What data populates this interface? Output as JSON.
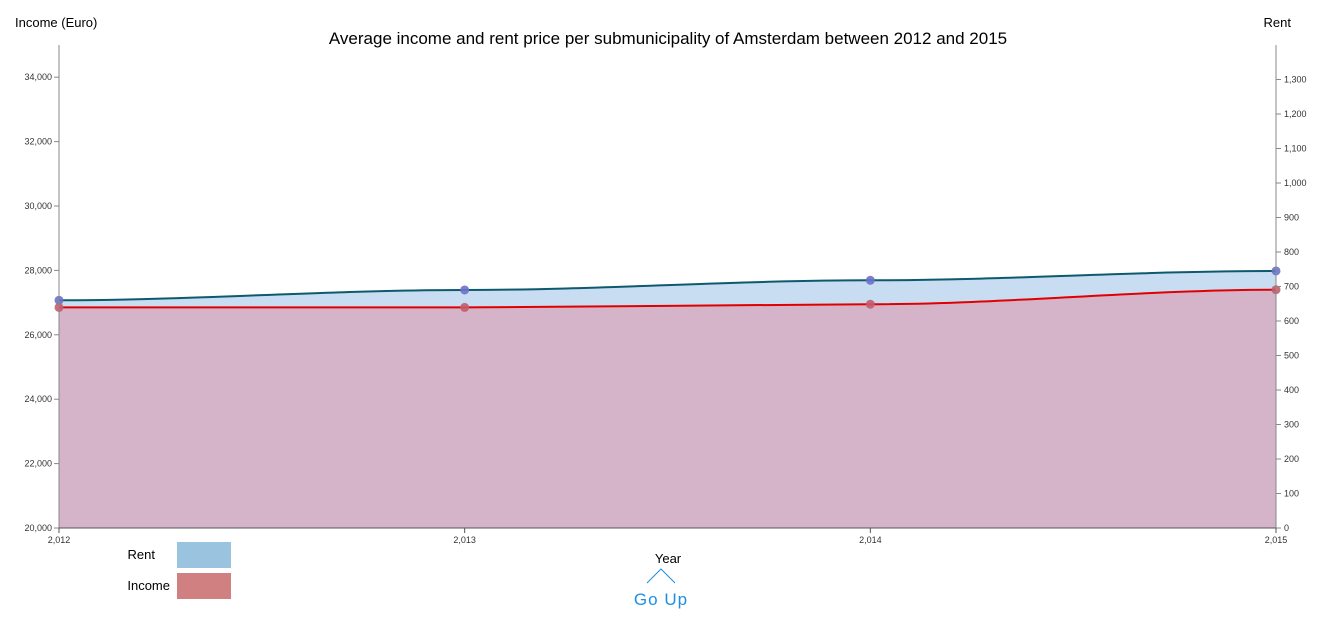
{
  "chart_data": {
    "type": "area",
    "title": "Average income and rent price per submunicipality of Amsterdam between 2012 and 2015",
    "xlabel": "Year",
    "ylabel_left": "Income (Euro)",
    "ylabel_right": "Rent",
    "x": [
      2012,
      2013,
      2014,
      2015
    ],
    "x_tick_labels": [
      "2,012",
      "2,013",
      "2,014",
      "2,015"
    ],
    "xlim": [
      2012,
      2015
    ],
    "ylim_left": [
      20000,
      35000
    ],
    "y_ticks_left": [
      20000,
      22000,
      24000,
      26000,
      28000,
      30000,
      32000,
      34000
    ],
    "ylim_right": [
      0,
      1400
    ],
    "y_ticks_right": [
      0,
      100,
      200,
      300,
      400,
      500,
      600,
      700,
      800,
      900,
      1000,
      1100,
      1200,
      1300
    ],
    "series": [
      {
        "name": "Rent",
        "axis": "right",
        "values": [
          660,
          690,
          718,
          745
        ],
        "color": "#0d5a6e",
        "fill": "#c8dcf2",
        "marker": "#6a72c8"
      },
      {
        "name": "Income",
        "axis": "left",
        "values": [
          26850,
          26850,
          26950,
          27400
        ],
        "color": "#e00000",
        "fill": "#d5b3c8",
        "marker": "#c45c6c"
      }
    ],
    "legend": {
      "placement": "bottom-left",
      "items": [
        {
          "label": "Rent",
          "color": "#9ac3e0"
        },
        {
          "label": "Income",
          "color": "#d08080"
        }
      ]
    },
    "grid": false
  },
  "nav": {
    "go_up_label": "Go Up",
    "go_up_color": "#1e8fe0"
  }
}
